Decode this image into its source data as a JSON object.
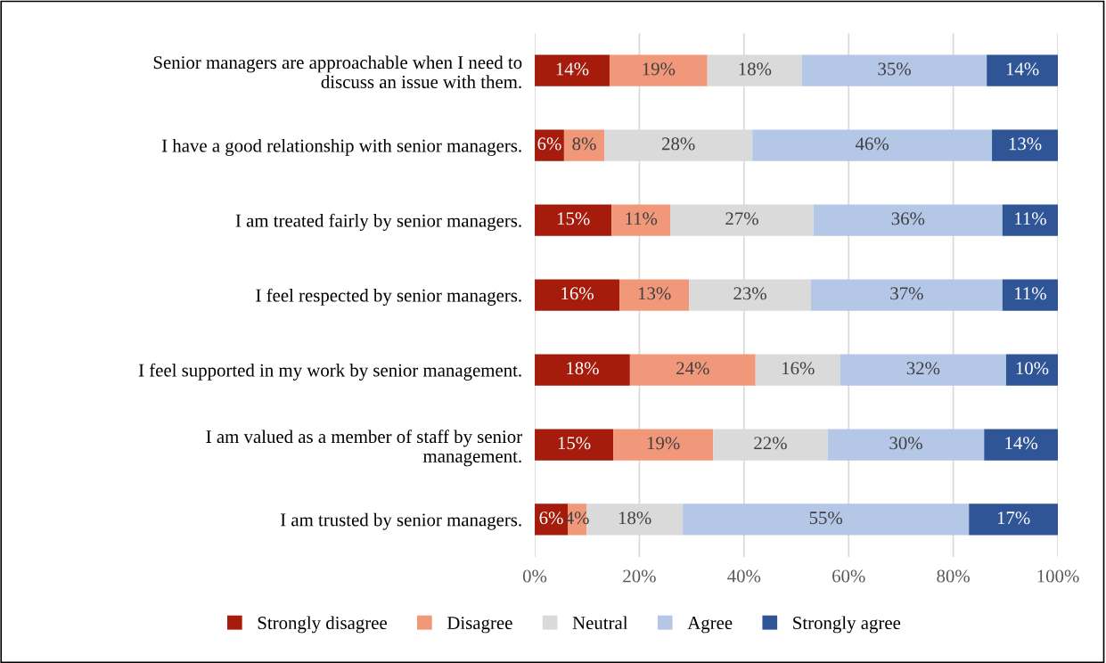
{
  "chart_data": {
    "type": "bar",
    "orientation": "horizontal",
    "stacked": true,
    "categories": [
      "Senior managers are approachable when I need to\ndiscuss an issue with them.",
      "I have a good relationship with senior managers.",
      "I am treated fairly by senior managers.",
      "I feel respected by senior managers.",
      "I feel supported in my work by senior management.",
      "I am valued as a member of staff by senior\nmanagement.",
      "I am trusted by senior managers."
    ],
    "series": [
      {
        "name": "Strongly disagree",
        "color": "#a51c0c",
        "values": [
          14.3,
          5.6,
          14.7,
          16.2,
          18.2,
          15.0,
          6.3
        ],
        "value_labels": [
          "14%",
          "6%",
          "15%",
          "16%",
          "18%",
          "15%",
          "6%"
        ]
      },
      {
        "name": "Disagree",
        "color": "#f1987a",
        "values": [
          18.7,
          7.7,
          11.2,
          13.3,
          24.0,
          19.1,
          3.6
        ],
        "value_labels": [
          "19%",
          "8%",
          "11%",
          "13%",
          "24%",
          "19%",
          "4%"
        ]
      },
      {
        "name": "Neutral",
        "color": "#dadada",
        "values": [
          18.1,
          28.3,
          27.4,
          23.3,
          16.2,
          21.9,
          18.4
        ],
        "value_labels": [
          "18%",
          "28%",
          "27%",
          "23%",
          "16%",
          "22%",
          "18%"
        ]
      },
      {
        "name": "Agree",
        "color": "#b4c7e7",
        "values": [
          35.3,
          45.8,
          36.1,
          36.6,
          31.7,
          29.9,
          54.7
        ],
        "value_labels": [
          "35%",
          "46%",
          "36%",
          "37%",
          "32%",
          "30%",
          "55%"
        ]
      },
      {
        "name": "Strongly agree",
        "color": "#2f5597",
        "values": [
          13.6,
          12.6,
          10.6,
          10.6,
          9.9,
          14.1,
          17.0
        ],
        "value_labels": [
          "14%",
          "13%",
          "11%",
          "11%",
          "10%",
          "14%",
          "17%"
        ]
      }
    ],
    "xlim": [
      0,
      100
    ],
    "xticks": [
      {
        "value": 0,
        "label": "0%"
      },
      {
        "value": 20,
        "label": "20%"
      },
      {
        "value": 40,
        "label": "40%"
      },
      {
        "value": 60,
        "label": "60%"
      },
      {
        "value": 80,
        "label": "80%"
      },
      {
        "value": 100,
        "label": "100%"
      }
    ],
    "grid": "x",
    "legend": "bottom"
  }
}
